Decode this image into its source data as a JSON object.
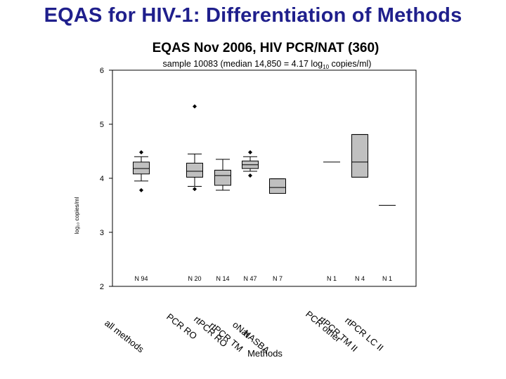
{
  "slide": {
    "title": "EQAS for HIV-1: Differentiation of Methods"
  },
  "chart_data": {
    "type": "box",
    "title": "EQAS Nov 2006, HIV PCR/NAT (360)",
    "subtitle_parts": [
      "sample 10083 (median 14,850 = 4.17 log",
      "10",
      " copies/ml)"
    ],
    "xlabel": "Methods",
    "ylabel": "log₁₀ copies/ml",
    "ylim": [
      2,
      6
    ],
    "yticks": [
      2,
      3,
      4,
      5,
      6
    ],
    "categories": [
      "all methods",
      "PCR RO",
      "rtPCR RO",
      "rtPCR TM",
      "oNat",
      "NASBA",
      "PCR other",
      "rtPCR TM II",
      "rtPCR LC II"
    ],
    "n_labels": [
      "N 94",
      "N 20",
      "N 14",
      "N 47",
      "N 7",
      "N 1",
      "N 4",
      "N 1"
    ],
    "boxes": [
      {
        "category": "all methods",
        "q1": 4.08,
        "median": 4.18,
        "q3": 4.3,
        "whisker_low": 3.95,
        "whisker_high": 4.4,
        "outliers": [
          4.48,
          3.78
        ]
      },
      {
        "category": "rtPCR RO",
        "q1": 4.02,
        "median": 4.13,
        "q3": 4.28,
        "whisker_low": 3.85,
        "whisker_high": 4.45,
        "outliers": [
          5.33,
          3.8
        ]
      },
      {
        "category": "rtPCR TM",
        "q1": 3.87,
        "median": 4.05,
        "q3": 4.15,
        "whisker_low": 3.78,
        "whisker_high": 4.35,
        "outliers": []
      },
      {
        "category": "oNat",
        "q1": 4.18,
        "median": 4.25,
        "q3": 4.32,
        "whisker_low": 4.13,
        "whisker_high": 4.4,
        "outliers": [
          4.48,
          4.05
        ]
      },
      {
        "category": "NASBA",
        "q1": 3.72,
        "median": 3.83,
        "q3": 3.99,
        "whisker_low": 3.72,
        "whisker_high": 3.99,
        "outliers": []
      },
      {
        "category": "PCR other",
        "q1": 4.3,
        "median": 4.3,
        "q3": 4.3,
        "whisker_low": 4.3,
        "whisker_high": 4.3,
        "outliers": []
      },
      {
        "category": "rtPCR TM II",
        "q1": 4.02,
        "median": 4.3,
        "q3": 4.81,
        "whisker_low": 4.02,
        "whisker_high": 4.81,
        "outliers": []
      },
      {
        "category": "rtPCR LC II",
        "q1": 3.5,
        "median": 3.5,
        "q3": 3.5,
        "whisker_low": 3.5,
        "whisker_high": 3.5,
        "outliers": []
      }
    ],
    "grid": false,
    "legend": "none",
    "colors": {
      "box_fill": "#c0c0c0",
      "line": "#000000",
      "title_blue": "#1f1f8c"
    }
  }
}
